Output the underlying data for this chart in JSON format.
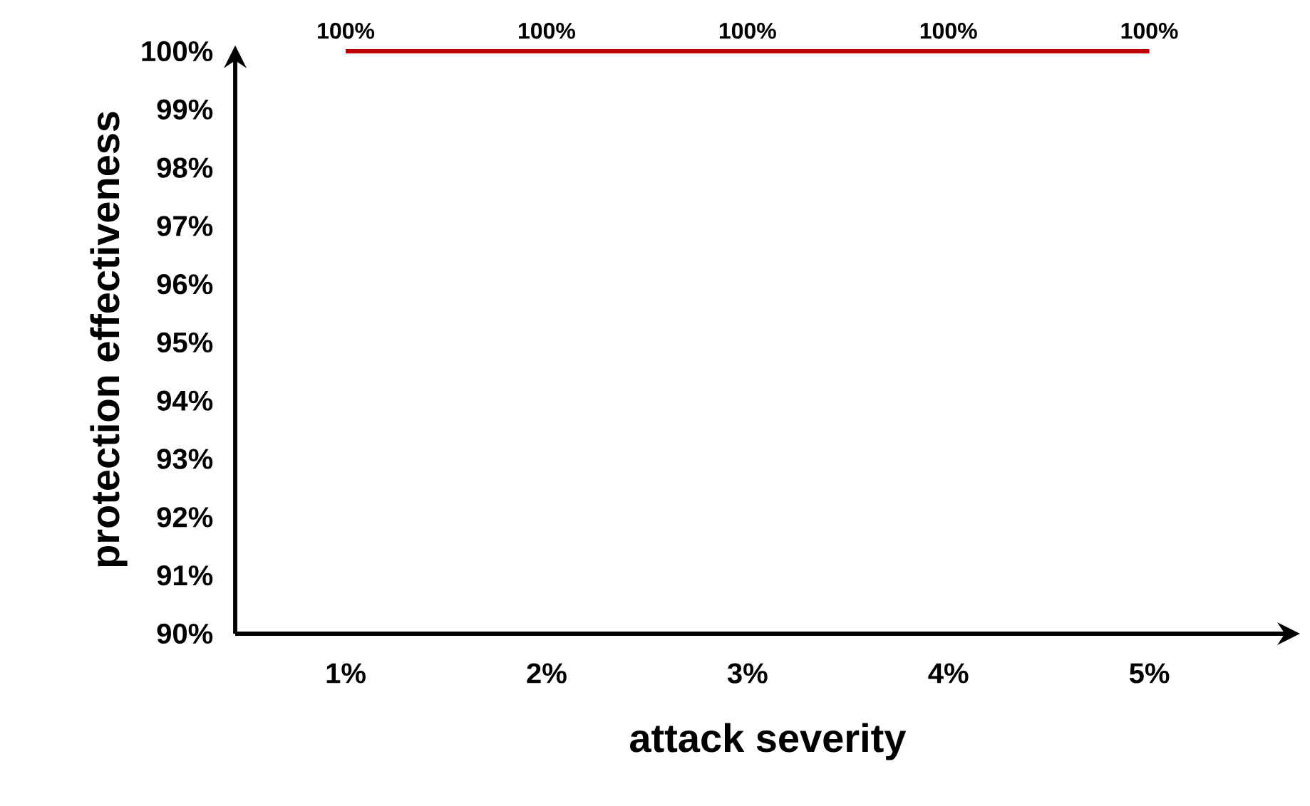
{
  "chart_data": {
    "type": "line",
    "xlabel": "attack severity",
    "ylabel": "protection effectiveness",
    "categories": [
      "1%",
      "2%",
      "3%",
      "4%",
      "5%"
    ],
    "series": [
      {
        "color": "#c00000",
        "values": [
          100,
          100,
          100,
          100,
          100
        ],
        "value_labels": [
          "100%",
          "100%",
          "100%",
          "100%",
          "100%"
        ]
      }
    ],
    "ylim": [
      90,
      100.1
    ],
    "yticks": [
      {
        "value": 90,
        "label": "90%"
      },
      {
        "value": 91,
        "label": "91%"
      },
      {
        "value": 92,
        "label": "92%"
      },
      {
        "value": 93,
        "label": "93%"
      },
      {
        "value": 94,
        "label": "94%"
      },
      {
        "value": 95,
        "label": "95%"
      },
      {
        "value": 96,
        "label": "96%"
      },
      {
        "value": 97,
        "label": "97%"
      },
      {
        "value": 98,
        "label": "98%"
      },
      {
        "value": 99,
        "label": "99%"
      },
      {
        "value": 100,
        "label": "100%"
      }
    ]
  }
}
